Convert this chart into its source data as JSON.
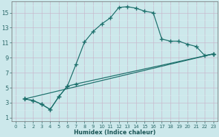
{
  "title": "",
  "xlabel": "Humidex (Indice chaleur)",
  "xlim": [
    -0.5,
    23.5
  ],
  "ylim": [
    0.5,
    16.5
  ],
  "xticks": [
    0,
    1,
    2,
    3,
    4,
    5,
    6,
    7,
    8,
    9,
    10,
    11,
    12,
    13,
    14,
    15,
    16,
    17,
    18,
    19,
    20,
    21,
    22,
    23
  ],
  "yticks": [
    1,
    3,
    5,
    7,
    9,
    11,
    13,
    15
  ],
  "bg_color": "#cce8eb",
  "grid_major_color": "#b8d8dc",
  "grid_minor_color": "#d4ecee",
  "line_color": "#1a6e6a",
  "line1_x": [
    1,
    2,
    3,
    4,
    5,
    6,
    7,
    8,
    9,
    10,
    11,
    12,
    13,
    14,
    15,
    16,
    17,
    18,
    19,
    20,
    21,
    22,
    23
  ],
  "line1_y": [
    3.5,
    3.3,
    2.8,
    2.1,
    3.8,
    5.2,
    8.1,
    11.1,
    12.5,
    13.5,
    14.3,
    15.7,
    15.8,
    15.6,
    15.2,
    15.0,
    11.5,
    11.2,
    11.2,
    10.8,
    10.5,
    9.3,
    9.5
  ],
  "line2_x": [
    1,
    2,
    3,
    4,
    5,
    6,
    7,
    23
  ],
  "line2_y": [
    3.5,
    3.3,
    2.8,
    2.1,
    3.8,
    5.2,
    5.5,
    9.5
  ],
  "line3_x": [
    1,
    23
  ],
  "line3_y": [
    3.5,
    9.5
  ]
}
